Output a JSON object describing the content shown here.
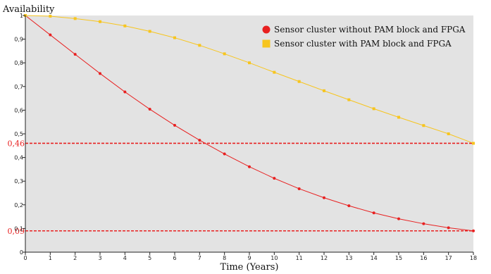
{
  "chart_data": {
    "type": "line",
    "xlabel": "Time (Years)",
    "ylabel": "Availability",
    "xlim": [
      0,
      18
    ],
    "ylim": [
      0,
      1
    ],
    "x_ticks": [
      "0",
      "1",
      "2",
      "3",
      "4",
      "5",
      "6",
      "7",
      "8",
      "9",
      "10",
      "11",
      "12",
      "13",
      "14",
      "15",
      "16",
      "17",
      "18"
    ],
    "y_ticks": [
      "0",
      "0,1",
      "0,2",
      "0,3",
      "0,4",
      "0,5",
      "0,6",
      "0,7",
      "0,8",
      "0,9",
      "1"
    ],
    "x": [
      0,
      1,
      2,
      3,
      4,
      5,
      6,
      7,
      8,
      9,
      10,
      11,
      12,
      13,
      14,
      15,
      16,
      17,
      18
    ],
    "series": [
      {
        "name": "Sensor cluster without PAM block and FPGA",
        "color": "#e82020",
        "marker": "circle",
        "values": [
          1.0,
          0.918,
          0.836,
          0.755,
          0.677,
          0.604,
          0.536,
          0.473,
          0.415,
          0.361,
          0.312,
          0.268,
          0.23,
          0.196,
          0.166,
          0.141,
          0.12,
          0.103,
          0.09
        ]
      },
      {
        "name": "Sensor cluster with PAM block and FPGA",
        "color": "#f7c51e",
        "marker": "square",
        "values": [
          1.0,
          0.997,
          0.987,
          0.974,
          0.956,
          0.933,
          0.906,
          0.874,
          0.838,
          0.8,
          0.76,
          0.721,
          0.682,
          0.644,
          0.606,
          0.57,
          0.535,
          0.5,
          0.46
        ]
      }
    ],
    "reference_lines": [
      {
        "label": "0,46",
        "value": 0.46,
        "color": "#e82020"
      },
      {
        "label": "0,09",
        "value": 0.09,
        "color": "#e82020"
      }
    ],
    "legend_position": "top-right",
    "grid": false,
    "background": "#e3e3e3",
    "axis_color": "#222222"
  }
}
